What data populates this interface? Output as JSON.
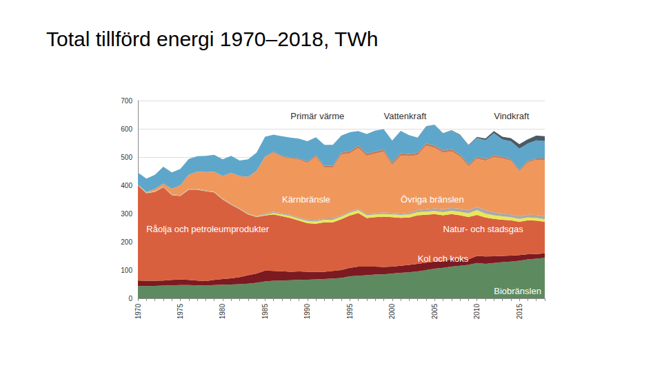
{
  "chart_data": {
    "type": "area",
    "title": "Total tillförd energi 1970–2018, TWh",
    "stacked": true,
    "grid": true,
    "categories": [
      "1970",
      null,
      null,
      null,
      null,
      "1975",
      null,
      null,
      null,
      null,
      "1980",
      null,
      null,
      null,
      null,
      "1985",
      null,
      null,
      null,
      null,
      "1990",
      null,
      null,
      null,
      null,
      "1995",
      null,
      null,
      null,
      null,
      "2000",
      null,
      null,
      null,
      null,
      "2005",
      null,
      null,
      null,
      null,
      "2010",
      null,
      null,
      null,
      null,
      "2015",
      null,
      null,
      null
    ],
    "ylim": [
      0,
      700
    ],
    "yticks": [
      0,
      100,
      200,
      300,
      400,
      500,
      600,
      700
    ],
    "series": [
      {
        "name": "Biobränslen",
        "color": "#5e8a5f",
        "values": [
          43,
          43,
          44,
          45,
          46,
          47,
          47,
          46,
          45,
          47,
          48,
          49,
          50,
          52,
          55,
          60,
          62,
          63,
          64,
          65,
          66,
          67,
          68,
          70,
          72,
          78,
          80,
          82,
          84,
          85,
          88,
          90,
          92,
          95,
          100,
          105,
          108,
          112,
          115,
          118,
          125,
          122,
          125,
          128,
          130,
          133,
          138,
          140,
          143
        ]
      },
      {
        "name": "Kol och koks",
        "color": "#7b1a20",
        "values": [
          20,
          19,
          18,
          18,
          19,
          20,
          18,
          17,
          16,
          18,
          20,
          22,
          25,
          30,
          33,
          38,
          35,
          33,
          30,
          30,
          28,
          27,
          26,
          27,
          28,
          30,
          32,
          30,
          28,
          26,
          24,
          25,
          26,
          27,
          26,
          25,
          24,
          26,
          24,
          20,
          25,
          26,
          24,
          22,
          21,
          20,
          18,
          17,
          16
        ]
      },
      {
        "name": "Råolja och petroleumprodukter",
        "color": "#d9603f",
        "values": [
          337,
          310,
          315,
          330,
          300,
          295,
          320,
          322,
          318,
          310,
          282,
          260,
          240,
          215,
          200,
          195,
          200,
          195,
          190,
          180,
          172,
          170,
          175,
          172,
          180,
          185,
          190,
          172,
          175,
          178,
          175,
          170,
          168,
          172,
          170,
          168,
          162,
          160,
          155,
          150,
          145,
          138,
          132,
          128,
          125,
          118,
          120,
          118,
          112
        ]
      },
      {
        "name": "Natur- och stadsgas",
        "color": "#e9e75a",
        "values": [
          1,
          1,
          1,
          1,
          1,
          1,
          1,
          1,
          1,
          1,
          1,
          1,
          1,
          1,
          1,
          3,
          5,
          6,
          7,
          7,
          8,
          8,
          9,
          9,
          9,
          10,
          10,
          10,
          10,
          10,
          10,
          10,
          11,
          11,
          11,
          11,
          11,
          12,
          12,
          13,
          17,
          14,
          13,
          12,
          11,
          10,
          10,
          10,
          9
        ]
      },
      {
        "name": "Övriga bränslen",
        "color": "#a9a9a9",
        "values": [
          2,
          2,
          2,
          2,
          2,
          2,
          2,
          2,
          2,
          2,
          2,
          2,
          2,
          2,
          2,
          4,
          4,
          4,
          4,
          4,
          5,
          5,
          5,
          5,
          5,
          5,
          5,
          5,
          5,
          5,
          5,
          5,
          6,
          7,
          8,
          9,
          10,
          10,
          11,
          11,
          12,
          12,
          11,
          10,
          10,
          9,
          10,
          10,
          10
        ]
      },
      {
        "name": "Kärnbränsle",
        "color": "#f0975c",
        "values": [
          0,
          1,
          7,
          10,
          20,
          35,
          50,
          60,
          65,
          70,
          80,
          110,
          115,
          130,
          160,
          200,
          210,
          200,
          200,
          205,
          200,
          225,
          180,
          180,
          215,
          205,
          215,
          205,
          210,
          215,
          170,
          205,
          200,
          195,
          225,
          215,
          200,
          200,
          185,
          155,
          170,
          175,
          195,
          195,
          190,
          160,
          185,
          195,
          200
        ]
      },
      {
        "name": "Primär värme",
        "color": "#c77b55",
        "values": [
          0,
          0,
          0,
          0,
          0,
          0,
          0,
          0,
          0,
          0,
          0,
          0,
          0,
          0,
          0,
          2,
          3,
          3,
          4,
          4,
          5,
          5,
          6,
          6,
          7,
          7,
          8,
          8,
          8,
          8,
          8,
          8,
          8,
          8,
          8,
          8,
          8,
          8,
          7,
          7,
          7,
          6,
          6,
          6,
          5,
          5,
          5,
          5,
          5
        ]
      },
      {
        "name": "Vattenkraft",
        "color": "#5ea7cb",
        "values": [
          42,
          48,
          50,
          60,
          58,
          58,
          55,
          55,
          57,
          60,
          59,
          60,
          55,
          62,
          65,
          70,
          60,
          70,
          70,
          70,
          72,
          63,
          74,
          74,
          60,
          68,
          52,
          70,
          74,
          72,
          78,
          79,
          66,
          53,
          60,
          73,
          61,
          66,
          69,
          66,
          67,
          67,
          79,
          61,
          64,
          75,
          62,
          64,
          62
        ]
      },
      {
        "name": "Vindkraft",
        "color": "#4b5a66",
        "values": [
          0,
          0,
          0,
          0,
          0,
          0,
          0,
          0,
          0,
          0,
          0,
          0,
          0,
          0,
          0,
          0,
          0,
          0,
          0,
          0,
          0,
          0,
          0,
          0,
          0,
          0,
          0,
          0,
          0,
          0,
          0.5,
          0.5,
          0.6,
          0.6,
          0.9,
          0.9,
          1,
          1.4,
          2,
          2.5,
          3.5,
          6,
          7,
          10,
          11,
          16,
          15,
          17,
          17
        ]
      }
    ]
  }
}
